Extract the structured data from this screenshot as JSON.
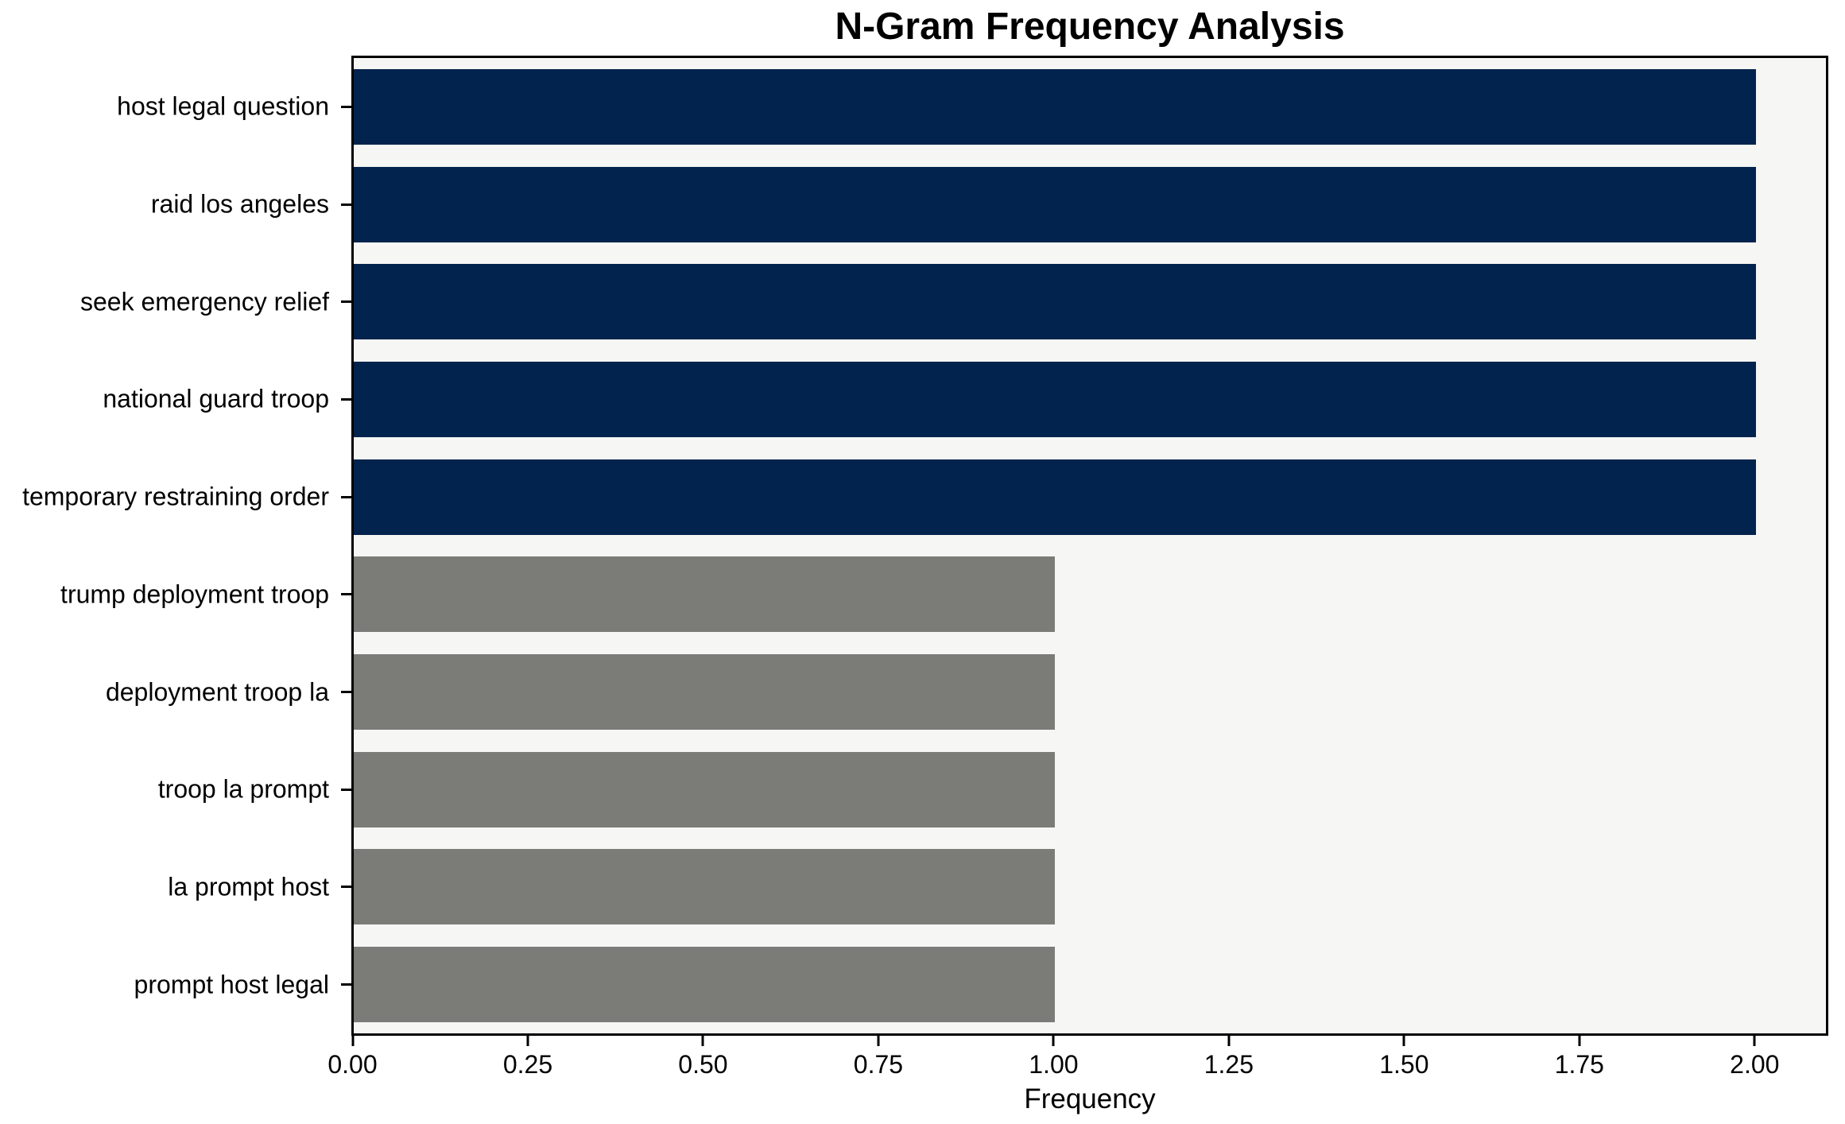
{
  "figure": {
    "title": "N-Gram Frequency Analysis"
  },
  "axes": {
    "xlabel": "Frequency",
    "x_tick_labels": [
      "0.00",
      "0.25",
      "0.50",
      "0.75",
      "1.00",
      "1.25",
      "1.50",
      "1.75",
      "2.00"
    ]
  },
  "colors": {
    "navy_bar": "#02234d",
    "gray_bar": "#7b7b77",
    "plot_background": "#f6f6f4",
    "figure_background": "#ffffff",
    "spine": "#000000",
    "text": "#000000"
  },
  "chart_data": {
    "type": "bar",
    "orientation": "horizontal",
    "title": "N-Gram Frequency Analysis",
    "xlabel": "Frequency",
    "ylabel": "",
    "categories": [
      "host legal question",
      "raid los angeles",
      "seek emergency relief",
      "national guard troop",
      "temporary restraining order",
      "trump deployment troop",
      "deployment troop la",
      "troop la prompt",
      "la prompt host",
      "prompt host legal"
    ],
    "values": [
      2,
      2,
      2,
      2,
      2,
      1,
      1,
      1,
      1,
      1
    ],
    "bar_colors": [
      "#02234d",
      "#02234d",
      "#02234d",
      "#02234d",
      "#02234d",
      "#7b7b77",
      "#7b7b77",
      "#7b7b77",
      "#7b7b77",
      "#7b7b77"
    ],
    "xlim": [
      0,
      2.1
    ],
    "x_ticks": [
      0,
      0.25,
      0.5,
      0.75,
      1.0,
      1.25,
      1.5,
      1.75,
      2.0
    ],
    "grid": false,
    "legend": "none"
  }
}
